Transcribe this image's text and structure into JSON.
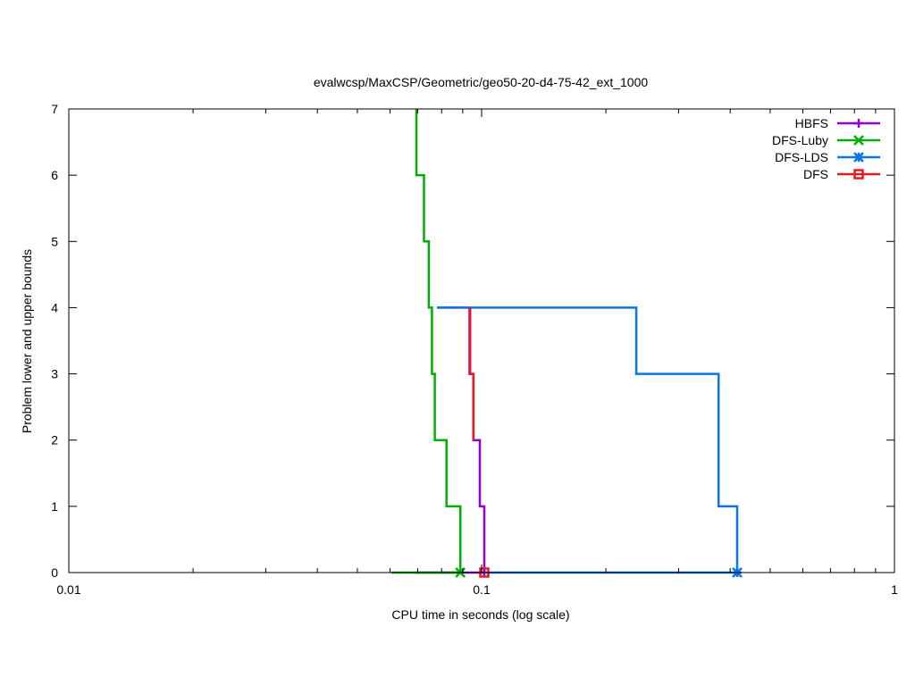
{
  "chart_data": {
    "type": "line",
    "title": "evalwcsp/MaxCSP/Geometric/geo50-20-d4-75-42_ext_1000",
    "xlabel": "CPU time in seconds (log scale)",
    "ylabel": "Problem lower and upper bounds",
    "xscale": "log",
    "xlim": [
      0.01,
      1
    ],
    "ylim": [
      0,
      7
    ],
    "x_ticks": [
      {
        "value": 0.01,
        "label": "0.01"
      },
      {
        "value": 0.1,
        "label": "0.1"
      },
      {
        "value": 1,
        "label": "1"
      }
    ],
    "y_ticks": [
      {
        "value": 0,
        "label": "0"
      },
      {
        "value": 1,
        "label": "1"
      },
      {
        "value": 2,
        "label": "2"
      },
      {
        "value": 3,
        "label": "3"
      },
      {
        "value": 4,
        "label": "4"
      },
      {
        "value": 5,
        "label": "5"
      },
      {
        "value": 6,
        "label": "6"
      },
      {
        "value": 7,
        "label": "7"
      }
    ],
    "grid": false,
    "legend_position": "top-right",
    "series": [
      {
        "name": "HBFS",
        "color": "#9400d3",
        "marker": "plus",
        "upper": [
          [
            0.078,
            4
          ],
          [
            0.0935,
            4
          ],
          [
            0.0935,
            3
          ],
          [
            0.0955,
            3
          ],
          [
            0.0955,
            2
          ],
          [
            0.099,
            2
          ],
          [
            0.099,
            1
          ],
          [
            0.1015,
            1
          ],
          [
            0.1015,
            0
          ]
        ],
        "lower": [
          [
            0.069,
            0
          ],
          [
            0.1015,
            0
          ]
        ],
        "endpoint": [
          0.1015,
          0
        ]
      },
      {
        "name": "DFS-Luby",
        "color": "#00b000",
        "marker": "cross",
        "upper": [
          [
            0.0695,
            7
          ],
          [
            0.0695,
            6
          ],
          [
            0.0725,
            6
          ],
          [
            0.0725,
            5
          ],
          [
            0.0745,
            5
          ],
          [
            0.0745,
            4
          ],
          [
            0.0758,
            4
          ],
          [
            0.0758,
            3
          ],
          [
            0.077,
            3
          ],
          [
            0.077,
            2
          ],
          [
            0.0822,
            2
          ],
          [
            0.0822,
            1
          ],
          [
            0.0888,
            1
          ],
          [
            0.0888,
            0
          ]
        ],
        "lower": [
          [
            0.0605,
            0
          ],
          [
            0.0888,
            0
          ]
        ],
        "endpoint": [
          0.0888,
          0
        ]
      },
      {
        "name": "DFS-LDS",
        "color": "#0a75e8",
        "marker": "star",
        "upper": [
          [
            0.078,
            4
          ],
          [
            0.237,
            4
          ],
          [
            0.237,
            3
          ],
          [
            0.375,
            3
          ],
          [
            0.375,
            1
          ],
          [
            0.416,
            1
          ],
          [
            0.416,
            0
          ]
        ],
        "lower": [
          [
            0.1015,
            0
          ],
          [
            0.416,
            0
          ]
        ],
        "endpoint": [
          0.416,
          0
        ]
      },
      {
        "name": "DFS",
        "color": "#e51a1a",
        "marker": "square",
        "upper": [
          [
            0.0938,
            4
          ],
          [
            0.0938,
            3
          ],
          [
            0.0955,
            3
          ],
          [
            0.0955,
            2
          ]
        ],
        "lower": [],
        "endpoint": [
          0.1015,
          0
        ]
      }
    ]
  }
}
